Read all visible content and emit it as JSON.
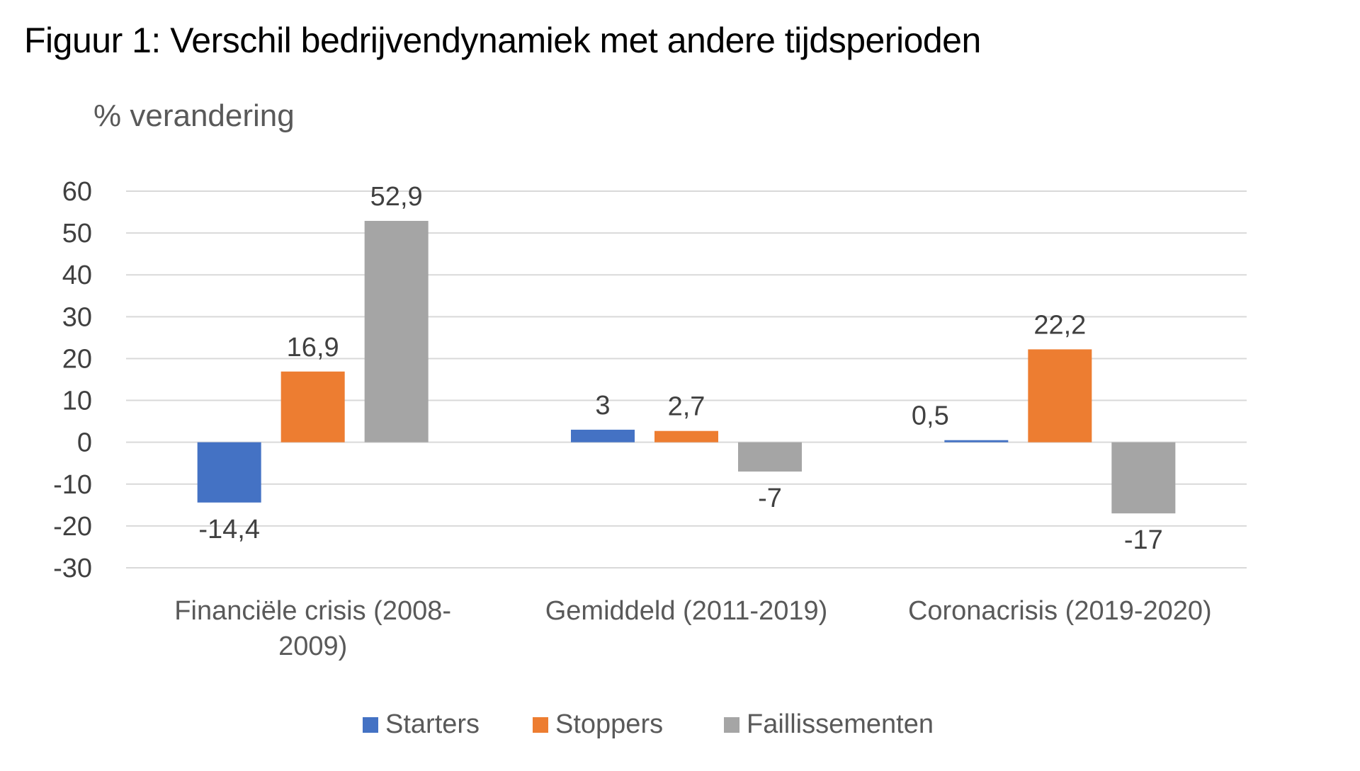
{
  "chart_data": {
    "type": "bar",
    "title": "Figuur 1: Verschil bedrijvendynamiek met andere tijdsperioden",
    "ylabel": "% verandering",
    "xlabel": "",
    "ylim": [
      -30,
      60
    ],
    "yticks": [
      60,
      50,
      40,
      30,
      20,
      10,
      0,
      -10,
      -20,
      -30
    ],
    "grid": true,
    "legend_position": "bottom",
    "categories": [
      [
        "Financiële crisis (2008-",
        "2009)"
      ],
      [
        "Gemiddeld (2011-2019)"
      ],
      [
        "Coronacrisis (2019-2020)"
      ]
    ],
    "series": [
      {
        "name": "Starters",
        "color": "#4472C4",
        "values": [
          -14.4,
          3,
          0.5
        ],
        "labels": [
          "-14,4",
          "3",
          "0,5"
        ]
      },
      {
        "name": "Stoppers",
        "color": "#ED7D31",
        "values": [
          16.9,
          2.7,
          22.2
        ],
        "labels": [
          "16,9",
          "2,7",
          "22,2"
        ]
      },
      {
        "name": "Faillissementen",
        "color": "#A5A5A5",
        "values": [
          52.9,
          -7,
          -17
        ],
        "labels": [
          "52,9",
          "-7",
          "-17"
        ]
      }
    ]
  }
}
